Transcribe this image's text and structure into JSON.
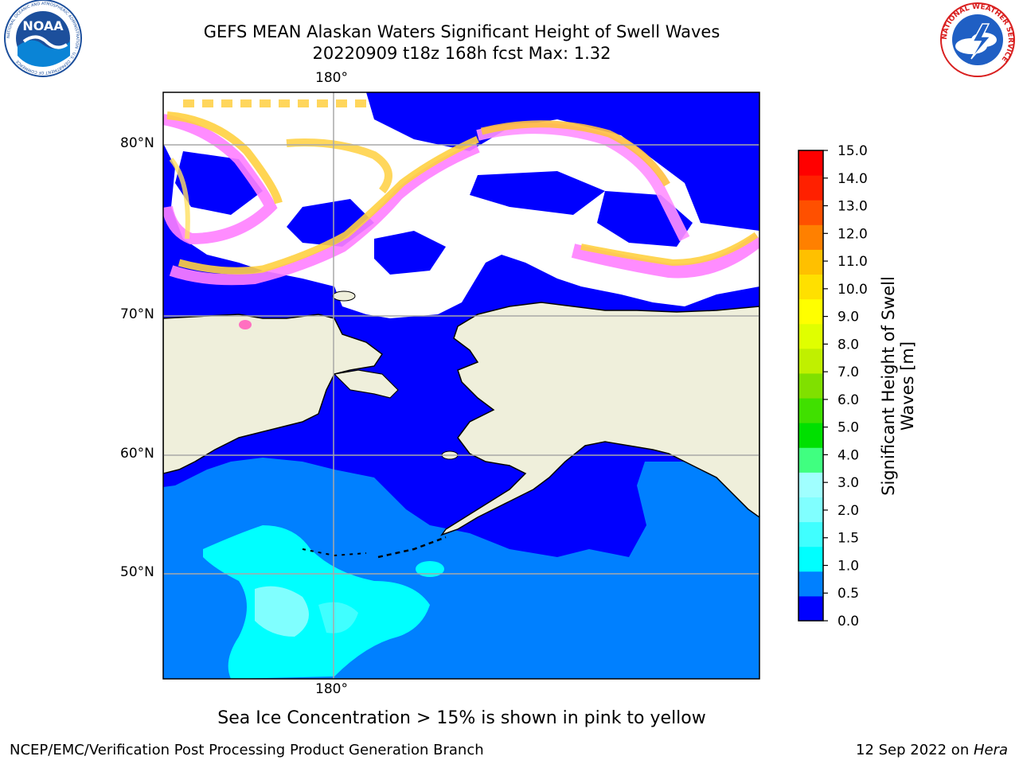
{
  "title": {
    "line1": "GEFS MEAN Alaskan Waters Significant Height of Swell Waves",
    "line2": "20220909 t18z 168h fcst   Max: 1.32"
  },
  "map": {
    "lon_label_top": "180°",
    "lon_label_bottom": "180°",
    "lat_labels": [
      "80°N",
      "70°N",
      "60°N",
      "50°N"
    ]
  },
  "colorbar": {
    "label_line1": "Significant Height of Swell",
    "label_line2": "Waves [m]",
    "ticks": [
      "15.0",
      "14.0",
      "13.0",
      "12.0",
      "11.0",
      "10.0",
      "9.0",
      "8.0",
      "7.0",
      "6.0",
      "5.0",
      "4.0",
      "3.0",
      "2.0",
      "1.5",
      "1.0",
      "0.5",
      "0.0"
    ],
    "colors_bottom_to_top": [
      "#0000ff",
      "#0080ff",
      "#00ffff",
      "#40ffff",
      "#80ffff",
      "#a0ffff",
      "#40ff80",
      "#00e000",
      "#40e000",
      "#80e000",
      "#c0f000",
      "#e0ff00",
      "#ffff00",
      "#ffe000",
      "#ffc000",
      "#ff8000",
      "#ff5000",
      "#ff2000",
      "#ff0000"
    ]
  },
  "note": "Sea Ice Concentration > 15% is shown in pink to yellow",
  "footer": {
    "left": "NCEP/EMC/Verification Post Processing Product Generation Branch",
    "right_prefix": "12 Sep 2022 on ",
    "right_host": "Hera"
  },
  "logos": {
    "left_text": "NOAA",
    "left_ring": "NATIONAL OCEANIC AND ATMOSPHERIC ADMINISTRATION · U.S. DEPARTMENT OF COMMERCE",
    "right_ring": "NATIONAL WEATHER SERVICE"
  }
}
